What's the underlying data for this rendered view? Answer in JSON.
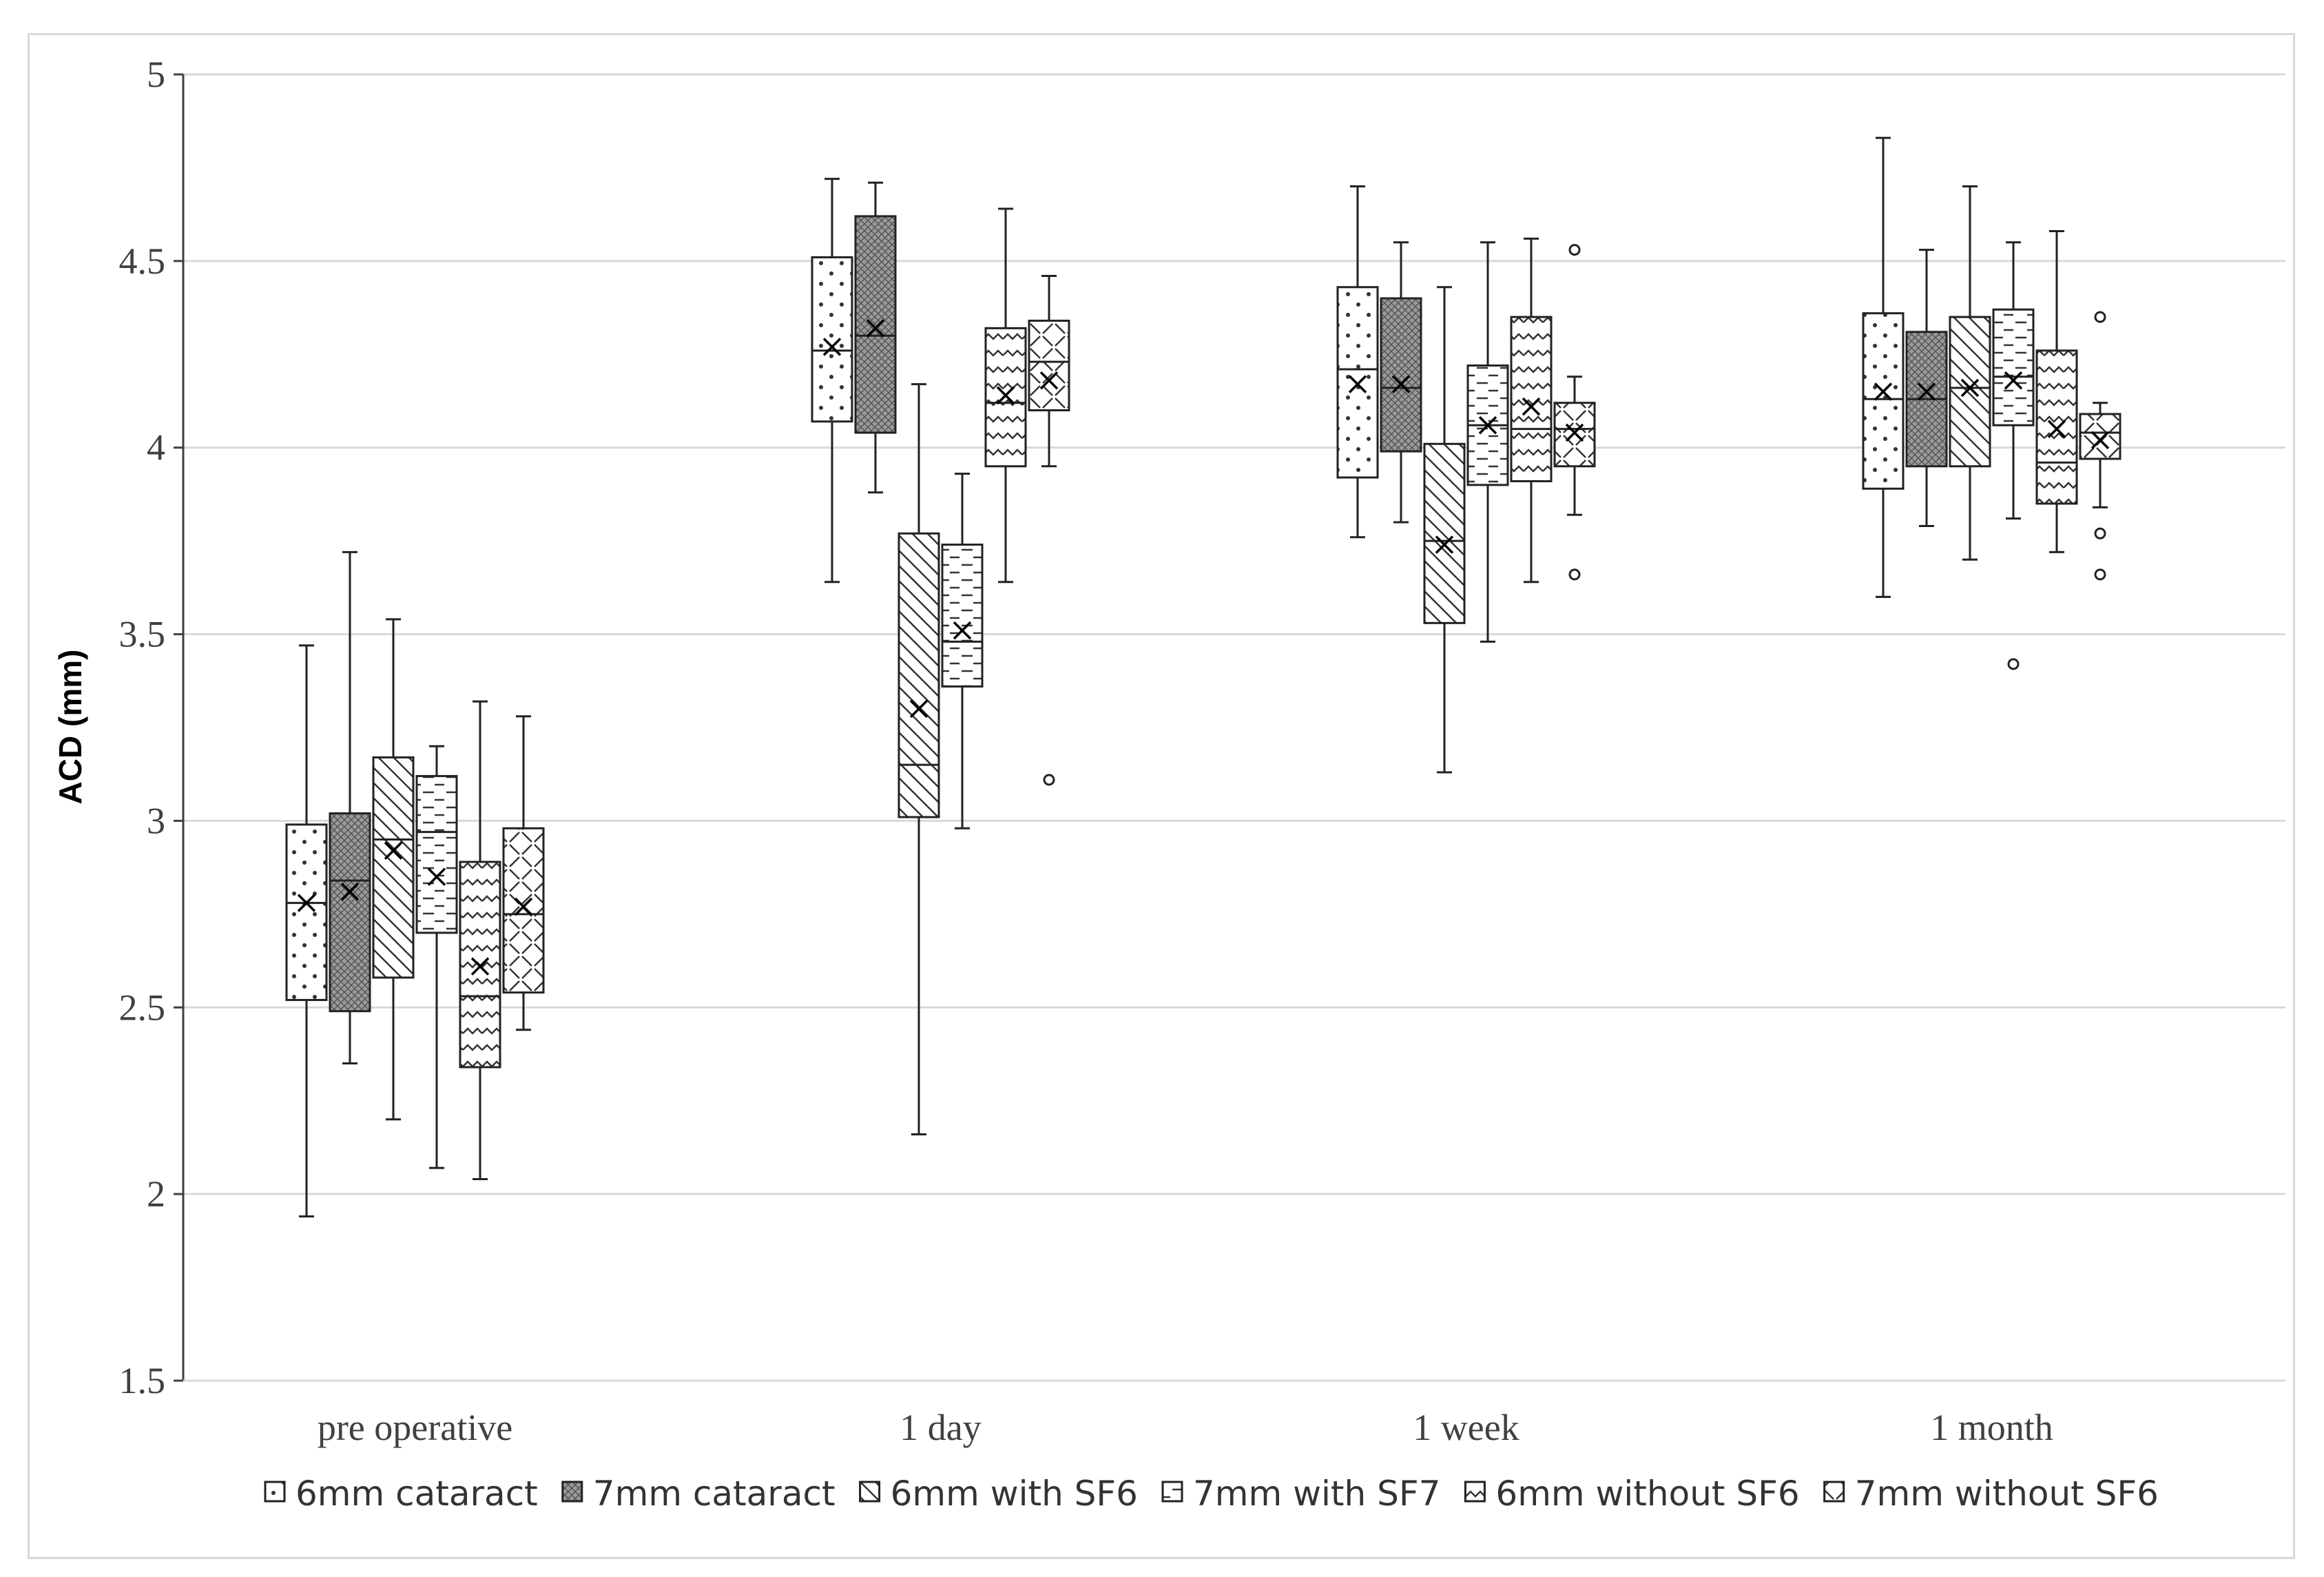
{
  "chart_data": {
    "type": "box",
    "title": "",
    "xlabel": "",
    "ylabel": "ACD (mm)",
    "ylim": [
      1.5,
      5
    ],
    "yticks": [
      "1.5",
      "2",
      "2.5",
      "3",
      "3.5",
      "4",
      "4.5",
      "5"
    ],
    "grid": true,
    "legend_position": "bottom",
    "categories": [
      "pre operative",
      "1 day",
      "1 week",
      "1 month"
    ],
    "series": [
      {
        "name": "6mm cataract",
        "pattern": "dots",
        "fill": "#ffffff",
        "boxes": [
          {
            "min": 1.94,
            "q1": 2.52,
            "median": 2.78,
            "q3": 2.99,
            "max": 3.47,
            "mean": 2.78,
            "outliers": []
          },
          {
            "min": 3.64,
            "q1": 4.07,
            "median": 4.26,
            "q3": 4.51,
            "max": 4.72,
            "mean": 4.27,
            "outliers": []
          },
          {
            "min": 3.76,
            "q1": 3.92,
            "median": 4.21,
            "q3": 4.43,
            "max": 4.7,
            "mean": 4.17,
            "outliers": []
          },
          {
            "min": 3.6,
            "q1": 3.89,
            "median": 4.13,
            "q3": 4.36,
            "max": 4.83,
            "mean": 4.15,
            "outliers": []
          }
        ]
      },
      {
        "name": "7mm cataract",
        "pattern": "crosshatch",
        "fill": "#9a9a9a",
        "boxes": [
          {
            "min": 2.35,
            "q1": 2.49,
            "median": 2.84,
            "q3": 3.02,
            "max": 3.72,
            "mean": 2.81,
            "outliers": []
          },
          {
            "min": 3.88,
            "q1": 4.04,
            "median": 4.3,
            "q3": 4.62,
            "max": 4.71,
            "mean": 4.32,
            "outliers": []
          },
          {
            "min": 3.8,
            "q1": 3.99,
            "median": 4.16,
            "q3": 4.4,
            "max": 4.55,
            "mean": 4.17,
            "outliers": []
          },
          {
            "min": 3.79,
            "q1": 3.95,
            "median": 4.13,
            "q3": 4.31,
            "max": 4.53,
            "mean": 4.15,
            "outliers": []
          }
        ]
      },
      {
        "name": "6mm with SF6",
        "pattern": "diag-wide",
        "fill": "#ffffff",
        "boxes": [
          {
            "min": 2.2,
            "q1": 2.58,
            "median": 2.95,
            "q3": 3.17,
            "max": 3.54,
            "mean": 2.92,
            "outliers": []
          },
          {
            "min": 2.16,
            "q1": 3.01,
            "median": 3.15,
            "q3": 3.77,
            "max": 4.17,
            "mean": 3.3,
            "outliers": []
          },
          {
            "min": 3.13,
            "q1": 3.53,
            "median": 3.75,
            "q3": 4.01,
            "max": 4.43,
            "mean": 3.74,
            "outliers": []
          },
          {
            "min": 3.7,
            "q1": 3.95,
            "median": 4.16,
            "q3": 4.35,
            "max": 4.7,
            "mean": 4.16,
            "outliers": []
          }
        ]
      },
      {
        "name": "7mm with SF7",
        "pattern": "dashes",
        "fill": "#ffffff",
        "boxes": [
          {
            "min": 2.07,
            "q1": 2.7,
            "median": 2.97,
            "q3": 3.12,
            "max": 3.2,
            "mean": 2.85,
            "outliers": []
          },
          {
            "min": 2.98,
            "q1": 3.36,
            "median": 3.48,
            "q3": 3.74,
            "max": 3.93,
            "mean": 3.51,
            "outliers": []
          },
          {
            "min": 3.48,
            "q1": 3.9,
            "median": 4.06,
            "q3": 4.22,
            "max": 4.55,
            "mean": 4.06,
            "outliers": []
          },
          {
            "min": 3.81,
            "q1": 4.06,
            "median": 4.19,
            "q3": 4.37,
            "max": 4.55,
            "mean": 4.18,
            "outliers": [
              3.42
            ]
          }
        ]
      },
      {
        "name": "6mm without SF6",
        "pattern": "zigzag",
        "fill": "#ffffff",
        "boxes": [
          {
            "min": 2.04,
            "q1": 2.34,
            "median": 2.53,
            "q3": 2.89,
            "max": 3.32,
            "mean": 2.61,
            "outliers": []
          },
          {
            "min": 3.64,
            "q1": 3.95,
            "median": 4.12,
            "q3": 4.32,
            "max": 4.64,
            "mean": 4.14,
            "outliers": []
          },
          {
            "min": 3.64,
            "q1": 3.91,
            "median": 4.05,
            "q3": 4.35,
            "max": 4.56,
            "mean": 4.11,
            "outliers": []
          },
          {
            "min": 3.72,
            "q1": 3.85,
            "median": 3.96,
            "q3": 4.26,
            "max": 4.58,
            "mean": 4.05,
            "outliers": []
          }
        ]
      },
      {
        "name": "7mm without SF6",
        "pattern": "weave",
        "fill": "#ffffff",
        "boxes": [
          {
            "min": 2.44,
            "q1": 2.54,
            "median": 2.75,
            "q3": 2.98,
            "max": 3.28,
            "mean": 2.77,
            "outliers": []
          },
          {
            "min": 3.95,
            "q1": 4.1,
            "median": 4.23,
            "q3": 4.34,
            "max": 4.46,
            "mean": 4.18,
            "outliers": [
              3.11
            ]
          },
          {
            "min": 3.82,
            "q1": 3.95,
            "median": 4.05,
            "q3": 4.12,
            "max": 4.19,
            "mean": 4.04,
            "outliers": [
              3.66,
              4.53
            ]
          },
          {
            "min": 3.84,
            "q1": 3.97,
            "median": 4.04,
            "q3": 4.09,
            "max": 4.12,
            "mean": 4.02,
            "outliers": [
              3.66,
              3.77,
              4.35
            ]
          }
        ]
      }
    ]
  },
  "colors": {
    "grid": "#d9d9d9",
    "axis": "#404040",
    "box_stroke": "#222222",
    "frame": "#d9d9d9"
  }
}
